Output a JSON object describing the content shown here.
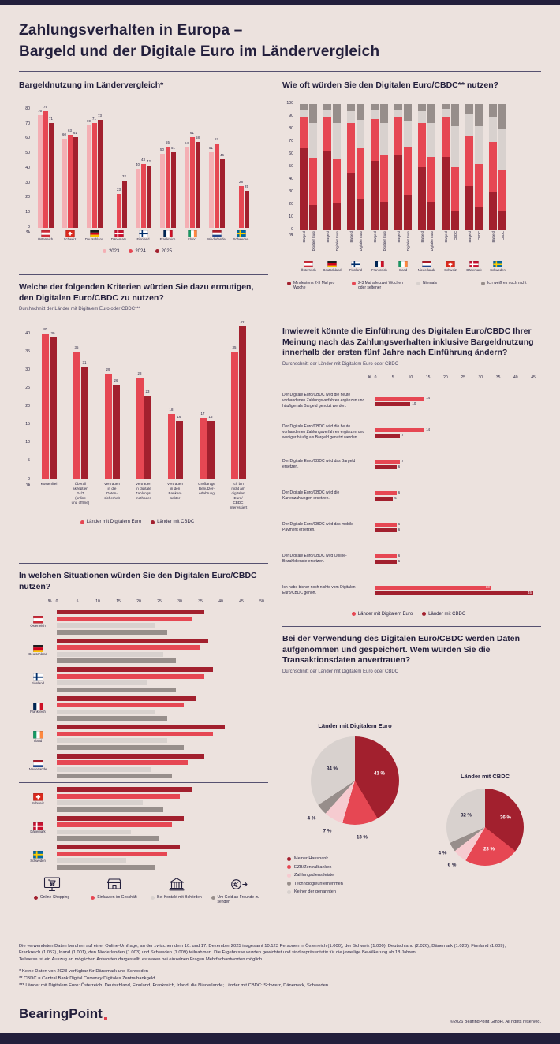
{
  "header": {
    "title_line1": "Zahlungsverhalten in Europa –",
    "title_line2": "Bargeld und der Digitale Euro im Ländervergleich"
  },
  "colors": {
    "background": "#ece2de",
    "navy": "#231f3c",
    "pink_2023": "#f4afb4",
    "red_2024": "#e64753",
    "darkred_2025": "#a2202e",
    "lightgray": "#d8d1ce",
    "darkgray": "#978e8b",
    "palepink": "#f6cbd0"
  },
  "chart_data": [
    {
      "id": "cash_usage",
      "type": "bar",
      "title": "Bargeldnutzung im Ländervergleich*",
      "ylabel": "%",
      "ylim": [
        0,
        80
      ],
      "yticks": [
        0,
        10,
        20,
        30,
        40,
        50,
        60,
        70,
        80
      ],
      "categories": [
        "Österreich",
        "Schweiz",
        "Deutschland",
        "Dänemark",
        "Finnland",
        "Frankreich",
        "Irland",
        "Niederlande",
        "Schweden"
      ],
      "country_codes": [
        "AT",
        "CH",
        "DE",
        "DK",
        "FI",
        "FR",
        "IE",
        "NL",
        "SE"
      ],
      "series": [
        {
          "name": "2023",
          "color": "pink_2023",
          "values": [
            76,
            60,
            69,
            null,
            40,
            50,
            54,
            51,
            null
          ]
        },
        {
          "name": "2024",
          "color": "red_2024",
          "values": [
            79,
            63,
            71,
            23,
            43,
            55,
            61,
            57,
            28
          ]
        },
        {
          "name": "2025",
          "color": "darkred_2025",
          "values": [
            71,
            61,
            73,
            32,
            42,
            51,
            58,
            46,
            25
          ]
        }
      ]
    },
    {
      "id": "usage_frequency",
      "type": "stacked_bar",
      "title": "Wie oft würden Sie den Digitalen Euro/CBDC** nutzen?",
      "ylabel": "%",
      "ylim": [
        0,
        100
      ],
      "yticks": [
        0,
        10,
        20,
        30,
        40,
        50,
        60,
        70,
        80,
        90,
        100
      ],
      "legend": [
        "Mindestens 2-3 Mal pro Woche",
        "2-3 Mal alle zwei Wochen oder seltener",
        "Niemals",
        "Ich weiß es noch nicht"
      ],
      "segment_colors": [
        "darkred_2025",
        "red_2024",
        "lightgray",
        "darkgray"
      ],
      "divider_after_group": 5,
      "groups": [
        {
          "country": "Österreich",
          "code": "AT",
          "bars": [
            {
              "label": "Bargeld",
              "values": [
                65,
                25,
                5,
                5
              ]
            },
            {
              "label": "Digitaler Euro",
              "values": [
                20,
                37,
                28,
                15
              ]
            }
          ]
        },
        {
          "country": "Deutschland",
          "code": "DE",
          "bars": [
            {
              "label": "Bargeld",
              "values": [
                62,
                27,
                6,
                5
              ]
            },
            {
              "label": "Digitaler Euro",
              "values": [
                21,
                35,
                29,
                15
              ]
            }
          ]
        },
        {
          "country": "Finnland",
          "code": "FI",
          "bars": [
            {
              "label": "Bargeld",
              "values": [
                45,
                40,
                9,
                6
              ]
            },
            {
              "label": "Digitaler Euro",
              "values": [
                25,
                40,
                22,
                13
              ]
            }
          ]
        },
        {
          "country": "Frankreich",
          "code": "FR",
          "bars": [
            {
              "label": "Bargeld",
              "values": [
                55,
                33,
                7,
                5
              ]
            },
            {
              "label": "Digitaler Euro",
              "values": [
                22,
                38,
                25,
                15
              ]
            }
          ]
        },
        {
          "country": "Irland",
          "code": "IE",
          "bars": [
            {
              "label": "Bargeld",
              "values": [
                60,
                30,
                5,
                5
              ]
            },
            {
              "label": "Digitaler Euro",
              "values": [
                28,
                38,
                20,
                14
              ]
            }
          ]
        },
        {
          "country": "Niederlande",
          "code": "NL",
          "bars": [
            {
              "label": "Bargeld",
              "values": [
                50,
                35,
                9,
                6
              ]
            },
            {
              "label": "Digitaler Euro",
              "values": [
                22,
                36,
                27,
                15
              ]
            }
          ]
        },
        {
          "country": "Schweiz",
          "code": "CH",
          "bars": [
            {
              "label": "Bargeld",
              "values": [
                58,
                32,
                6,
                4
              ]
            },
            {
              "label": "CBDC",
              "values": [
                15,
                35,
                32,
                18
              ]
            }
          ]
        },
        {
          "country": "Dänemark",
          "code": "DK",
          "bars": [
            {
              "label": "Bargeld",
              "values": [
                35,
                40,
                17,
                8
              ]
            },
            {
              "label": "CBDC",
              "values": [
                18,
                34,
                30,
                18
              ]
            }
          ]
        },
        {
          "country": "Schweden",
          "code": "SE",
          "bars": [
            {
              "label": "Bargeld",
              "values": [
                30,
                40,
                20,
                10
              ]
            },
            {
              "label": "CBDC",
              "values": [
                15,
                33,
                32,
                20
              ]
            }
          ]
        }
      ]
    },
    {
      "id": "criteria",
      "type": "bar",
      "title": "Welche der folgenden Kriterien würden Sie dazu ermutigen, den Digitalen Euro/CBDC zu nutzen?",
      "subtitle": "Durchschnitt der Länder mit Digitalem Euro oder CBDC***",
      "ylabel": "%",
      "ylim": [
        0,
        40
      ],
      "yticks": [
        0,
        5,
        10,
        15,
        20,
        25,
        30,
        35,
        40
      ],
      "categories": [
        {
          "lines": [
            "Kostenfrei"
          ]
        },
        {
          "lines": [
            "Überall",
            "akzeptiert",
            "24/7",
            "(online",
            "und offline)"
          ]
        },
        {
          "lines": [
            "Vertrauen",
            "in die",
            "Daten-",
            "sicherheit"
          ]
        },
        {
          "lines": [
            "Vertrauen",
            "in digitale",
            "Zahlungs-",
            "methoden"
          ]
        },
        {
          "lines": [
            "Vertrauen",
            "in den",
            "Banken-",
            "sektor"
          ]
        },
        {
          "lines": [
            "Großartige",
            "Benutzer-",
            "erfahrung"
          ]
        },
        {
          "lines": [
            "Ich bin",
            "nicht am",
            "digitalen",
            "Euro/",
            "CBDC",
            "interessiert"
          ]
        }
      ],
      "series": [
        {
          "name": "Länder mit Digitalem Euro",
          "color": "red_2024",
          "values": [
            40,
            35,
            29,
            28,
            18,
            17,
            35
          ]
        },
        {
          "name": "Länder mit CBDC",
          "color": "darkred_2025",
          "values": [
            39,
            31,
            26,
            23,
            16,
            16,
            42
          ]
        }
      ]
    },
    {
      "id": "situations",
      "type": "bar_h",
      "title": "In welchen Situationen würden Sie den Digitalen Euro/CBDC nutzen?",
      "xlabel": "%",
      "xlim": [
        0,
        50
      ],
      "xticks": [
        0,
        5,
        10,
        15,
        20,
        25,
        30,
        35,
        40,
        45,
        50
      ],
      "categories": [
        "Österreich",
        "Deutschland",
        "Finnland",
        "Frankreich",
        "Irland",
        "Niederlande",
        "Schweiz",
        "Dänemark",
        "Schweden"
      ],
      "country_codes": [
        "AT",
        "DE",
        "FI",
        "FR",
        "IE",
        "NL",
        "CH",
        "DK",
        "SE"
      ],
      "divider_after_index": 5,
      "series": [
        {
          "name": "Online-Shopping",
          "icon": "online-shopping-icon",
          "color": "darkred_2025",
          "values": [
            36,
            37,
            38,
            34,
            41,
            36,
            33,
            31,
            30
          ]
        },
        {
          "name": "Einkaufen im Geschäft",
          "icon": "store-icon",
          "color": "red_2024",
          "values": [
            33,
            35,
            36,
            31,
            38,
            32,
            30,
            28,
            27
          ]
        },
        {
          "name": "Bei Kontakt mit Behörden",
          "icon": "bank-icon",
          "color": "lightgray",
          "values": [
            24,
            26,
            22,
            24,
            27,
            23,
            21,
            18,
            17
          ]
        },
        {
          "name": "Um Geld an Freunde zu senden",
          "icon": "send-money-icon",
          "color": "darkgray",
          "values": [
            27,
            29,
            29,
            27,
            31,
            28,
            26,
            25,
            24
          ]
        }
      ]
    },
    {
      "id": "five_years",
      "type": "bar_h",
      "title": "Inwieweit könnte die Einführung des Digitalen Euro/CBDC Ihrer Meinung nach das Zahlungsverhalten inklusive Bargeldnutzung innerhalb der ersten fünf Jahre nach Einführung ändern?",
      "subtitle": "Durchschnitt der Länder mit Digitalem Euro oder CBDC",
      "xlabel": "%",
      "xlim": [
        0,
        45
      ],
      "xticks": [
        0,
        5,
        10,
        15,
        20,
        25,
        30,
        35,
        40,
        45
      ],
      "categories": [
        "Der Digitale Euro/CBDC wird die heute vorhandenen Zahlungsverfahren ergänzen und häufiger als Bargeld genutzt werden.",
        "Der Digitale Euro/CBDC wird die heute vorhandenen Zahlungsverfahren ergänzen und weniger häufig als Bargeld genutzt werden.",
        "Der Digitale Euro/CBDC wird das Bargeld ersetzen.",
        "Der Digitale Euro/CBDC wird die Kartenzahlungen ersetzen.",
        "Der Digitale Euro/CBDC wird das mobile Payment ersetzen.",
        "Der Digitale Euro/CBDC wird Online-Bezahldienste ersetzen.",
        "Ich habe bisher noch nichts vom Digitalen Euro/CBDC gehört."
      ],
      "series": [
        {
          "name": "Länder mit Digitalem Euro",
          "color": "red_2024",
          "values": [
            14,
            14,
            7,
            6,
            6,
            6,
            33
          ]
        },
        {
          "name": "Länder mit CBDC",
          "color": "darkred_2025",
          "values": [
            10,
            7,
            6,
            5,
            6,
            6,
            45
          ]
        }
      ]
    },
    {
      "id": "trust",
      "type": "pie",
      "title": "Bei der Verwendung des Digitalen Euro/CBDC werden Daten aufgenommen und gespeichert. Wem würden Sie die Transaktionsdaten anvertrauen?",
      "subtitle": "Durchschnitt der Länder mit Digitalem Euro oder CBDC",
      "legend": [
        "Meiner Hausbank",
        "EZB/Zentralbanken",
        "Zahlungsdienstleister",
        "Technologieunternehmen",
        "Keiner der genannten"
      ],
      "slice_colors": [
        "darkred_2025",
        "red_2024",
        "palepink",
        "darkgray",
        "lightgray"
      ],
      "pies": [
        {
          "title": "Länder mit Digitalem Euro",
          "values": [
            41,
            13,
            7,
            4,
            34
          ],
          "labels": [
            "41 %",
            "13 %",
            "7 %",
            "4 %",
            "34 %"
          ]
        },
        {
          "title": "Länder mit CBDC",
          "values": [
            36,
            23,
            6,
            4,
            32
          ],
          "labels": [
            "36 %",
            "23 %",
            "6 %",
            "4 %",
            "32 %"
          ]
        }
      ]
    }
  ],
  "footer": {
    "paragraph1": "Die verwendeten Daten beruhen auf einer Online-Umfrage, an der zwischen dem 10. und 17. Dezember 2025 insgesamt 10.123 Personen in Österreich (1.000), der Schweiz (1.000), Deutschland (2.026), Dänemark (1.023), Finnland (1.009), Frankreich (1.052), Irland (1.001), den Niederlanden (1.003) und Schweden (1.009) teilnahmen. Die Ergebnisse wurden gewichtet und sind repräsentativ für die jeweilige Bevölkerung ab 18 Jahren.",
    "paragraph2": "Teilweise ist ein Auszug an möglichen Antworten dargestellt, es waren bei einzelnen Fragen Mehrfachantworten möglich.",
    "footnote1": "* Keine Daten von 2023 verfügbar für Dänemark und Schweden",
    "footnote2": "** CBDC = Central Bank Digital Currency/Digitales Zentralbankgeld",
    "footnote3": "*** Länder mit Digitalem Euro: Österreich, Deutschland, Finnland, Frankreich, Irland, die Niederlande; Länder mit CBDC: Schweiz, Dänemark, Schweden",
    "logo": "BearingPoint",
    "copyright": "©2026 BearingPoint GmbH. All rights reserved."
  }
}
